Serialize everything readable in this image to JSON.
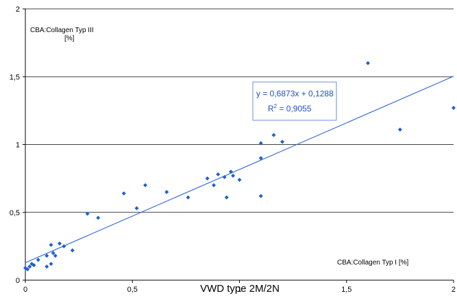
{
  "chart_data": {
    "type": "scatter",
    "title": "",
    "caption": "VWD type 2M/2N",
    "xlabel": "CBA:Collagen Typ I [%]",
    "ylabel_line1": "CBA:Collagen Typ III",
    "ylabel_line2": "[%]",
    "xlim": [
      0,
      2
    ],
    "ylim": [
      0,
      2
    ],
    "x_ticks": [
      0,
      0.5,
      1,
      1.5,
      2
    ],
    "x_tick_labels": [
      "0",
      "0,5",
      "1",
      "1,5",
      "2"
    ],
    "y_ticks": [
      0,
      0.5,
      1,
      1.5,
      2
    ],
    "y_tick_labels": [
      "0",
      "0,5",
      "1",
      "1,5",
      "2"
    ],
    "grid": "horizontal",
    "marker_color": "#1f5fd0",
    "line_color": "#3b6fd6",
    "trendline": {
      "slope": 0.6873,
      "intercept": 0.1288,
      "equation": "y = 0,6873x + 0,1288",
      "r2_prefix": "R",
      "r2_sup": "2",
      "r2_suffix": " = 0,9055"
    },
    "points": [
      [
        0.0,
        0.09
      ],
      [
        0.01,
        0.08
      ],
      [
        0.02,
        0.1
      ],
      [
        0.03,
        0.12
      ],
      [
        0.04,
        0.11
      ],
      [
        0.06,
        0.15
      ],
      [
        0.1,
        0.1
      ],
      [
        0.1,
        0.18
      ],
      [
        0.12,
        0.26
      ],
      [
        0.12,
        0.12
      ],
      [
        0.13,
        0.2
      ],
      [
        0.14,
        0.18
      ],
      [
        0.16,
        0.27
      ],
      [
        0.18,
        0.25
      ],
      [
        0.22,
        0.22
      ],
      [
        0.29,
        0.49
      ],
      [
        0.34,
        0.46
      ],
      [
        0.46,
        0.64
      ],
      [
        0.52,
        0.53
      ],
      [
        0.56,
        0.7
      ],
      [
        0.66,
        0.65
      ],
      [
        0.76,
        0.61
      ],
      [
        0.85,
        0.75
      ],
      [
        0.88,
        0.7
      ],
      [
        0.9,
        0.78
      ],
      [
        0.93,
        0.76
      ],
      [
        0.94,
        0.61
      ],
      [
        0.96,
        0.8
      ],
      [
        0.97,
        0.77
      ],
      [
        1.0,
        0.74
      ],
      [
        1.1,
        1.01
      ],
      [
        1.1,
        0.9
      ],
      [
        1.1,
        0.62
      ],
      [
        1.16,
        1.07
      ],
      [
        1.2,
        1.02
      ],
      [
        1.6,
        1.6
      ],
      [
        1.75,
        1.11
      ],
      [
        2.0,
        1.27
      ]
    ]
  }
}
